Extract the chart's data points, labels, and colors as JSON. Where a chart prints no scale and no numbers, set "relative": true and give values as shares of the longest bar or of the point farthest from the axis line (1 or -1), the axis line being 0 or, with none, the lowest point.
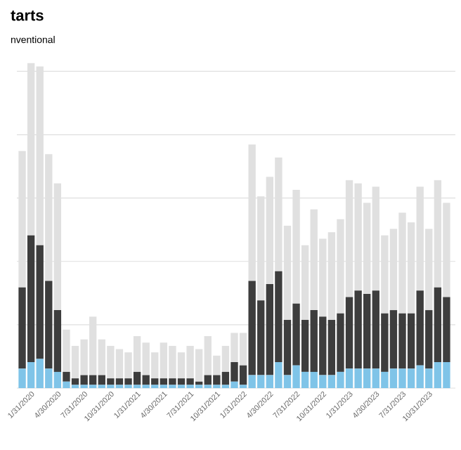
{
  "chart_data": {
    "type": "bar",
    "title": "tarts",
    "subtitle": "nventional",
    "stacked": true,
    "relative": true,
    "grid": "y",
    "categories": [
      null,
      "1/31/2020",
      null,
      null,
      "4/30/2020",
      null,
      null,
      "7/31/2020",
      null,
      null,
      "10/31/2020",
      null,
      null,
      "1/31/2021",
      null,
      null,
      "4/30/2021",
      null,
      null,
      "7/31/2021",
      null,
      null,
      "10/31/2021",
      null,
      null,
      "1/31/2022",
      null,
      null,
      "4/30/2022",
      null,
      null,
      "7/31/2022",
      null,
      null,
      "10/31/2022",
      null,
      null,
      "1/31/2023",
      null,
      null,
      "4/30/2023",
      null,
      null,
      "7/31/2023",
      null,
      null,
      "10/31/2023",
      null,
      null
    ],
    "series": [
      {
        "color": "#7fc4e8",
        "values": [
          0.06,
          0.08,
          0.09,
          0.06,
          0.05,
          0.02,
          0.01,
          0.01,
          0.01,
          0.01,
          0.01,
          0.01,
          0.01,
          0.01,
          0.01,
          0.01,
          0.01,
          0.01,
          0.01,
          0.01,
          0.01,
          0.01,
          0.01,
          0.01,
          0.02,
          0.01,
          0.04,
          0.04,
          0.04,
          0.08,
          0.04,
          0.07,
          0.05,
          0.05,
          0.04,
          0.04,
          0.05,
          0.06,
          0.06,
          0.06,
          0.06,
          0.05,
          0.06,
          0.06,
          0.06,
          0.07,
          0.06,
          0.08,
          0.08
        ]
      },
      {
        "color": "#3d3d3d",
        "values": [
          0.25,
          0.39,
          0.35,
          0.27,
          0.19,
          0.03,
          0.02,
          0.03,
          0.03,
          0.03,
          0.02,
          0.02,
          0.02,
          0.04,
          0.03,
          0.02,
          0.02,
          0.02,
          0.02,
          0.02,
          0.01,
          0.03,
          0.03,
          0.04,
          0.06,
          0.06,
          0.29,
          0.23,
          0.28,
          0.28,
          0.17,
          0.19,
          0.16,
          0.19,
          0.18,
          0.17,
          0.18,
          0.22,
          0.24,
          0.23,
          0.24,
          0.18,
          0.18,
          0.17,
          0.17,
          0.23,
          0.18,
          0.23,
          0.2
        ]
      },
      {
        "color": "#e0e0e0",
        "values": [
          0.42,
          0.53,
          0.55,
          0.39,
          0.39,
          0.13,
          0.1,
          0.11,
          0.18,
          0.11,
          0.1,
          0.09,
          0.08,
          0.11,
          0.1,
          0.08,
          0.11,
          0.1,
          0.08,
          0.1,
          0.1,
          0.12,
          0.06,
          0.08,
          0.09,
          0.1,
          0.42,
          0.32,
          0.33,
          0.35,
          0.29,
          0.35,
          0.23,
          0.31,
          0.24,
          0.27,
          0.29,
          0.36,
          0.33,
          0.28,
          0.32,
          0.24,
          0.25,
          0.31,
          0.28,
          0.32,
          0.25,
          0.33,
          0.29
        ]
      }
    ]
  }
}
